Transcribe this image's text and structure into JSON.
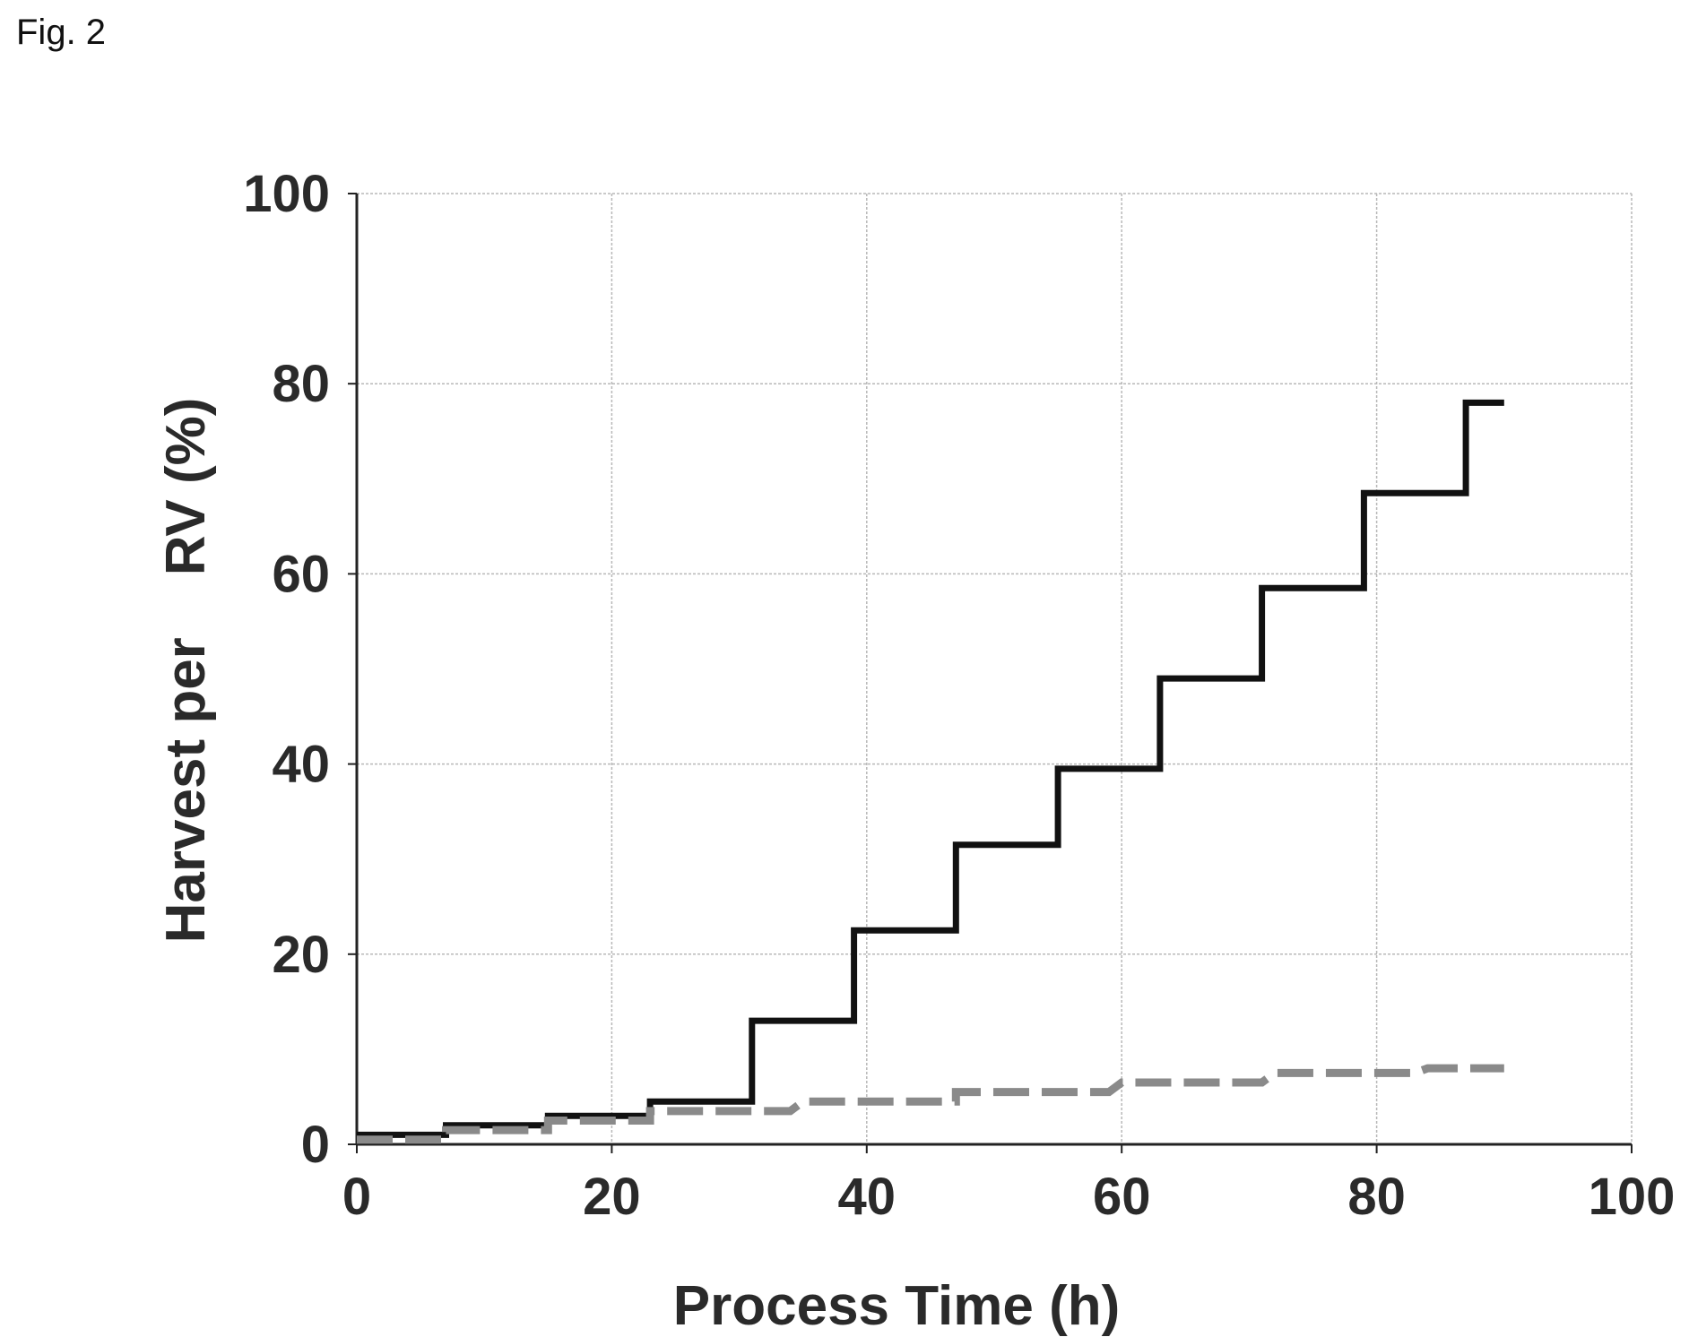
{
  "figure_label": "Fig. 2",
  "chart_data": {
    "type": "line",
    "xlabel": "Process Time (h)",
    "ylabel": "Harvest per    RV (%)",
    "xlim": [
      0,
      100
    ],
    "ylim": [
      0,
      100
    ],
    "xticks": [
      0,
      20,
      40,
      60,
      80,
      100
    ],
    "yticks": [
      0,
      20,
      40,
      60,
      80,
      100
    ],
    "grid": true,
    "series": [
      {
        "style": "solid",
        "color": "#111111",
        "points": [
          [
            0,
            1
          ],
          [
            7,
            1
          ],
          [
            7,
            2
          ],
          [
            15,
            2
          ],
          [
            15,
            3
          ],
          [
            23,
            3
          ],
          [
            23,
            4.5
          ],
          [
            31,
            4.5
          ],
          [
            31,
            13
          ],
          [
            39,
            13
          ],
          [
            39,
            22.5
          ],
          [
            47,
            22.5
          ],
          [
            47,
            31.5
          ],
          [
            55,
            31.5
          ],
          [
            55,
            39.5
          ],
          [
            63,
            39.5
          ],
          [
            63,
            49
          ],
          [
            71,
            49
          ],
          [
            71,
            58.5
          ],
          [
            79,
            58.5
          ],
          [
            79,
            68.5
          ],
          [
            87,
            68.5
          ],
          [
            87,
            78
          ],
          [
            90,
            78
          ]
        ]
      },
      {
        "style": "dashed",
        "color": "#8a8a8a",
        "points": [
          [
            0,
            0.5
          ],
          [
            7,
            0.5
          ],
          [
            7,
            1.5
          ],
          [
            15,
            1.5
          ],
          [
            15,
            2.5
          ],
          [
            23,
            2.5
          ],
          [
            23,
            3.5
          ],
          [
            34,
            3.5
          ],
          [
            35,
            4.5
          ],
          [
            47,
            4.5
          ],
          [
            47,
            5.5
          ],
          [
            59,
            5.5
          ],
          [
            60,
            6.5
          ],
          [
            71,
            6.5
          ],
          [
            72,
            7.5
          ],
          [
            83,
            7.5
          ],
          [
            84,
            8
          ],
          [
            90,
            8
          ]
        ]
      }
    ]
  }
}
